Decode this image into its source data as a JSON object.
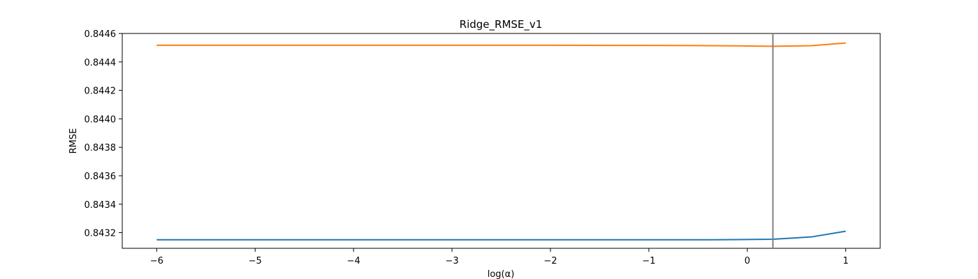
{
  "chart_data": {
    "type": "line",
    "title": "Ridge_RMSE_v1",
    "xlabel": "log(α)",
    "ylabel": "RMSE",
    "xlim": [
      -6.35,
      1.35
    ],
    "ylim": [
      0.84309,
      0.8446
    ],
    "xticks": [
      -6,
      -5,
      -4,
      -3,
      -2,
      -1,
      0,
      1
    ],
    "xtick_labels": [
      "−6",
      "−5",
      "−4",
      "−3",
      "−2",
      "−1",
      "0",
      "1"
    ],
    "yticks": [
      0.8432,
      0.8434,
      0.8436,
      0.8438,
      0.844,
      0.8442,
      0.8444,
      0.8446
    ],
    "ytick_labels": [
      "0.8432",
      "0.8434",
      "0.8436",
      "0.8438",
      "0.8440",
      "0.8442",
      "0.8444",
      "0.8446"
    ],
    "grid": false,
    "series": [
      {
        "color": "#1f77b4",
        "x": [
          -6,
          -5,
          -4,
          -3,
          -2,
          -1,
          -0.5,
          -0.1,
          0.26,
          0.65,
          1.0
        ],
        "y": [
          0.84315,
          0.84315,
          0.84315,
          0.84315,
          0.84315,
          0.84315,
          0.84315,
          0.843151,
          0.843154,
          0.84317,
          0.84321
        ]
      },
      {
        "color": "#ff7f0e",
        "x": [
          -6,
          -5,
          -4,
          -3,
          -2,
          -1,
          -0.5,
          -0.1,
          0.26,
          0.65,
          1.0
        ],
        "y": [
          0.844517,
          0.844517,
          0.844517,
          0.844517,
          0.844517,
          0.844516,
          0.844515,
          0.844513,
          0.84451,
          0.844514,
          0.844533
        ]
      }
    ],
    "vline": {
      "x": 0.26,
      "color": "#808080"
    }
  }
}
